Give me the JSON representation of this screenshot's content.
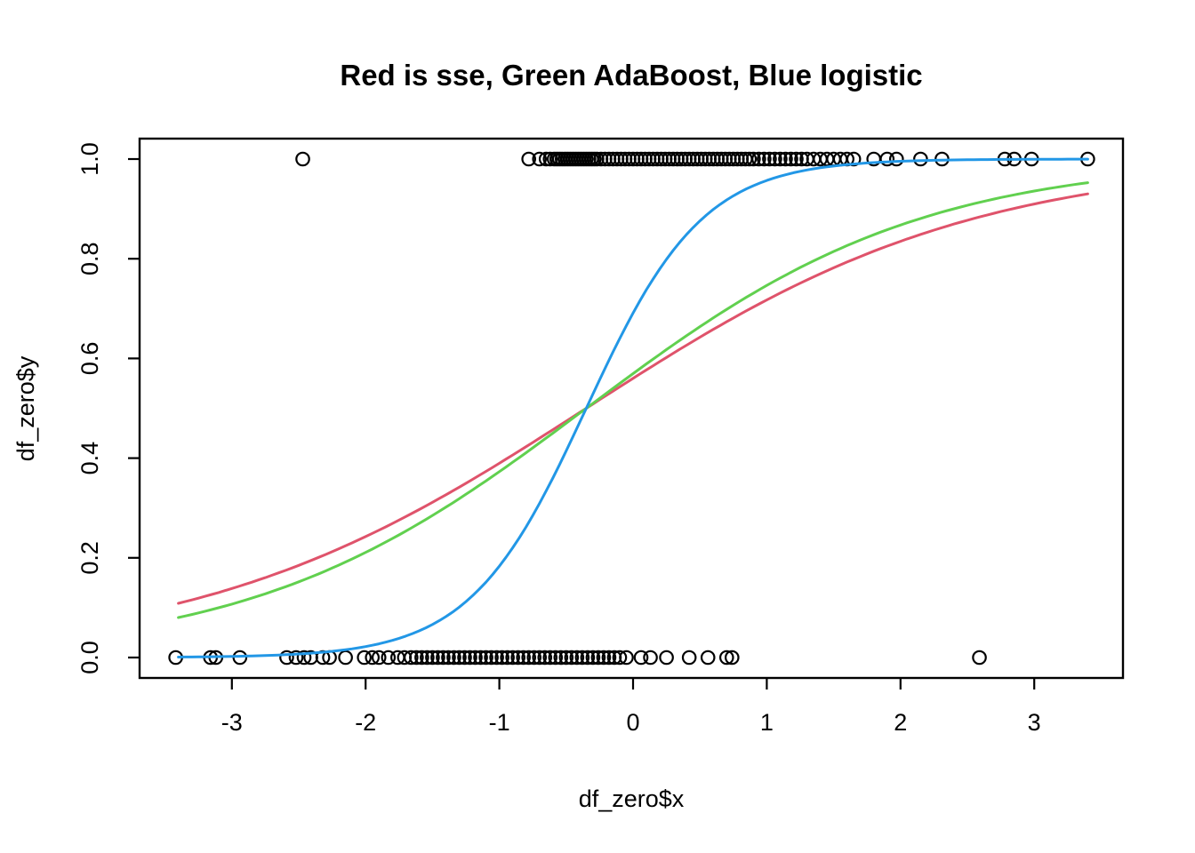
{
  "title": "Red is sse, Green AdaBoost, Blue logistic",
  "chart_data": {
    "type": "scatter",
    "title": "Red is sse, Green AdaBoost, Blue logistic",
    "xlabel": "df_zero$x",
    "ylabel": "df_zero$y",
    "xlim": [
      -3.7,
      3.67
    ],
    "ylim": [
      -0.04,
      1.04
    ],
    "grid": "off",
    "legend": "none (colors described in title)",
    "x_ticks": [
      -3,
      -2,
      -1,
      0,
      1,
      2,
      3
    ],
    "y_ticks": [
      0.0,
      0.2,
      0.4,
      0.6,
      0.8,
      1.0
    ],
    "y_tick_labels": [
      "0.0",
      "0.2",
      "0.4",
      "0.6",
      "0.8",
      "1.0"
    ],
    "point_style": "open-circle",
    "point_color": "#000000",
    "points_y1_x": [
      -2.47,
      -0.78,
      -0.7,
      -0.65,
      -0.62,
      -0.59,
      -0.57,
      -0.55,
      -0.53,
      -0.51,
      -0.49,
      -0.47,
      -0.45,
      -0.43,
      -0.41,
      -0.39,
      -0.37,
      -0.35,
      -0.33,
      -0.31,
      -0.29,
      -0.27,
      -0.24,
      -0.21,
      -0.18,
      -0.15,
      -0.12,
      -0.09,
      -0.06,
      -0.03,
      0.0,
      0.03,
      0.06,
      0.09,
      0.12,
      0.15,
      0.18,
      0.21,
      0.24,
      0.27,
      0.3,
      0.33,
      0.36,
      0.39,
      0.42,
      0.45,
      0.48,
      0.51,
      0.54,
      0.57,
      0.6,
      0.63,
      0.66,
      0.69,
      0.72,
      0.75,
      0.78,
      0.81,
      0.84,
      0.87,
      0.9,
      0.94,
      0.98,
      1.02,
      1.06,
      1.1,
      1.14,
      1.18,
      1.22,
      1.26,
      1.3,
      1.35,
      1.4,
      1.45,
      1.5,
      1.55,
      1.6,
      1.65,
      1.8,
      1.9,
      1.97,
      2.15,
      2.31,
      2.78,
      2.85,
      2.98,
      3.4
    ],
    "points_y0_x": [
      -3.42,
      -3.16,
      -3.12,
      -2.94,
      -2.59,
      -2.52,
      -2.46,
      -2.41,
      -2.32,
      -2.27,
      -2.15,
      -2.01,
      -1.95,
      -1.9,
      -1.83,
      -1.76,
      -1.71,
      -1.66,
      -1.62,
      -1.58,
      -1.54,
      -1.5,
      -1.46,
      -1.42,
      -1.38,
      -1.34,
      -1.3,
      -1.26,
      -1.22,
      -1.18,
      -1.14,
      -1.1,
      -1.06,
      -1.02,
      -0.98,
      -0.94,
      -0.9,
      -0.86,
      -0.82,
      -0.78,
      -0.74,
      -0.7,
      -0.66,
      -0.62,
      -0.58,
      -0.54,
      -0.5,
      -0.46,
      -0.42,
      -0.38,
      -0.34,
      -0.3,
      -0.26,
      -0.22,
      -0.18,
      -0.14,
      -0.1,
      -0.05,
      0.06,
      0.13,
      0.25,
      0.42,
      0.56,
      0.7,
      0.74,
      2.59
    ],
    "curves": [
      {
        "name": "sse",
        "color": "#DF536B",
        "form": "sigmoid",
        "k": 0.69,
        "x0": -0.35,
        "x_range": [
          -3.4,
          3.4
        ],
        "y_at_left": 0.11,
        "y_at_right": 0.93
      },
      {
        "name": "AdaBoost",
        "color": "#61D04F",
        "form": "sigmoid",
        "k": 0.8,
        "x0": -0.35,
        "x_range": [
          -3.4,
          3.4
        ],
        "y_at_left": 0.08,
        "y_at_right": 0.955
      },
      {
        "name": "logistic",
        "color": "#2297E6",
        "form": "sigmoid",
        "k": 2.3,
        "x0": -0.35,
        "x_range": [
          -3.4,
          3.4
        ],
        "y_at_left": 0.0,
        "y_at_right": 1.0
      }
    ],
    "crossing_point": {
      "x": -0.35,
      "y": 0.5
    }
  },
  "colors": {
    "background": "#ffffff",
    "axis": "#000000",
    "sse_red": "#DF536B",
    "adaboost_green": "#61D04F",
    "logistic_blue": "#2297E6"
  }
}
